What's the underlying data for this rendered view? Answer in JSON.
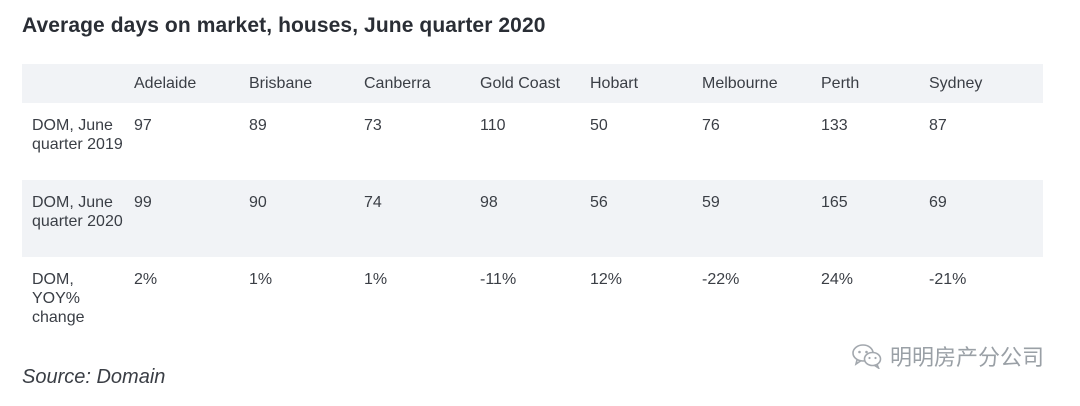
{
  "title": "Average days on market, houses, June quarter 2020",
  "table": {
    "columns": [
      "",
      "Adelaide",
      "Brisbane",
      "Canberra",
      "Gold Coast",
      "Hobart",
      "Melbourne",
      "Perth",
      "Sydney"
    ],
    "rows": [
      {
        "label": "DOM, June quarter 2019",
        "values": [
          "97",
          "89",
          "73",
          "110",
          "50",
          "76",
          "133",
          "87"
        ]
      },
      {
        "label": "DOM, June quarter 2020",
        "values": [
          "99",
          "90",
          "74",
          "98",
          "56",
          "59",
          "165",
          "69"
        ]
      },
      {
        "label": "DOM, YOY% change",
        "values": [
          "2%",
          "1%",
          "1%",
          "-11%",
          "12%",
          "-22%",
          "24%",
          "-21%"
        ]
      }
    ]
  },
  "source": "Source: Domain",
  "watermark": {
    "text": "明明房产分公司",
    "icon": "wechat-icon"
  }
}
